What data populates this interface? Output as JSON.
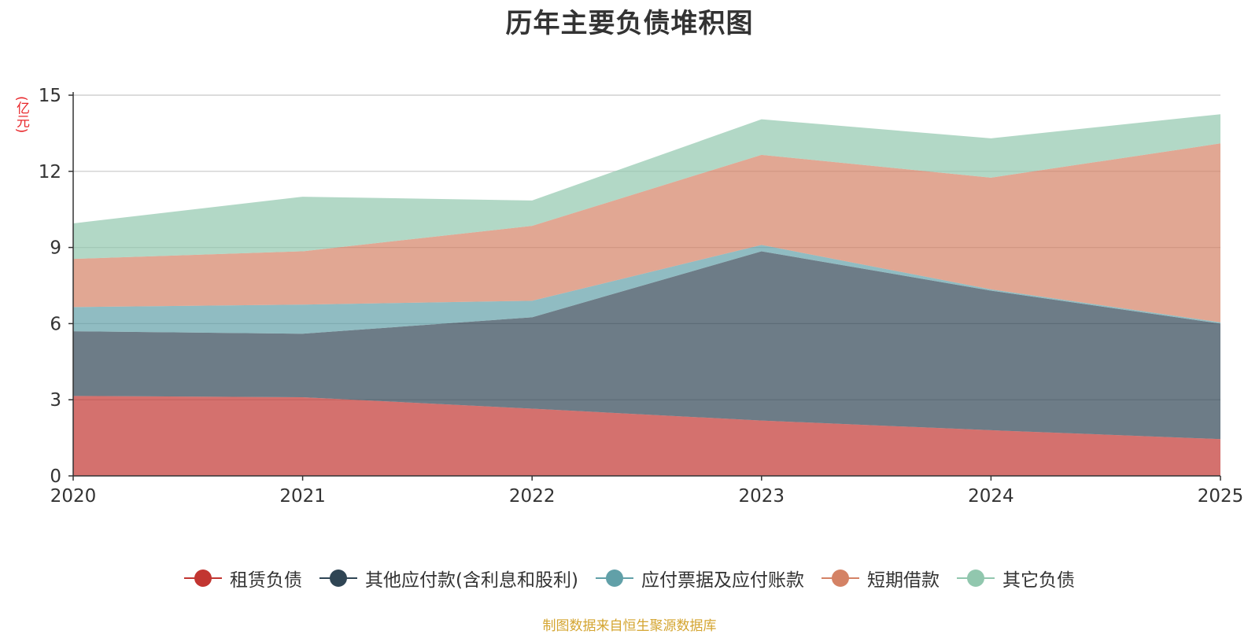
{
  "chart_data": {
    "type": "area",
    "stacked": true,
    "title": "历年主要负债堆积图",
    "ylabel": "(亿元)",
    "xlabel": "",
    "x": [
      "2020",
      "2021",
      "2022",
      "2023",
      "2024",
      "2025"
    ],
    "ylim": [
      0,
      15
    ],
    "yticks": [
      0,
      3,
      6,
      9,
      12,
      15
    ],
    "grid": true,
    "series": [
      {
        "name": "租赁负债",
        "color": "#c23531",
        "values": [
          3.15,
          3.1,
          2.65,
          2.18,
          1.8,
          1.45
        ]
      },
      {
        "name": "其他应付款(含利息和股利)",
        "color": "#2f4554",
        "values": [
          2.55,
          2.5,
          3.6,
          6.67,
          5.5,
          4.55
        ]
      },
      {
        "name": "应付票据及应付账款",
        "color": "#61a0a8",
        "values": [
          0.95,
          1.15,
          0.65,
          0.25,
          0.05,
          0.05
        ]
      },
      {
        "name": "短期借款",
        "color": "#d48265",
        "values": [
          1.9,
          2.1,
          2.95,
          3.55,
          4.4,
          7.05
        ]
      },
      {
        "name": "其它负债",
        "color": "#91c7ae",
        "values": [
          1.4,
          2.15,
          1.0,
          1.4,
          1.55,
          1.15
        ]
      }
    ],
    "legend_position": "bottom"
  },
  "source_note": "制图数据来自恒生聚源数据库"
}
